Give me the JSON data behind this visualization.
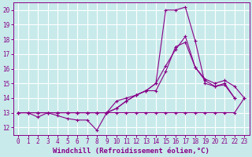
{
  "background_color": "#c8eaea",
  "grid_color": "#ffffff",
  "line_color": "#880088",
  "xlabel": "Windchill (Refroidissement éolien,°C)",
  "xlabel_fontsize": 6.5,
  "tick_fontsize": 5.5,
  "xlim": [
    -0.5,
    23.5
  ],
  "ylim": [
    11.5,
    20.5
  ],
  "yticks": [
    12,
    13,
    14,
    15,
    16,
    17,
    18,
    19,
    20
  ],
  "xticks": [
    0,
    1,
    2,
    3,
    4,
    5,
    6,
    7,
    8,
    9,
    10,
    11,
    12,
    13,
    14,
    15,
    16,
    17,
    18,
    19,
    20,
    21,
    22,
    23
  ],
  "series": [
    {
      "x": [
        0,
        1,
        2,
        3,
        4,
        5,
        6,
        7,
        8,
        9,
        10,
        11,
        12,
        13,
        14,
        15,
        16,
        17,
        18,
        19,
        20,
        21,
        22,
        23
      ],
      "y": [
        13,
        13,
        13,
        13,
        13,
        13,
        13,
        13,
        13,
        13,
        13,
        13,
        13,
        13,
        13,
        13,
        13,
        13,
        13,
        13,
        13,
        13,
        13,
        14
      ]
    },
    {
      "x": [
        0,
        1,
        2,
        3,
        4,
        5,
        6,
        7,
        8,
        9,
        10,
        11,
        12,
        13,
        14,
        15,
        16,
        17,
        18,
        19,
        20,
        21,
        22
      ],
      "y": [
        13,
        13,
        12.7,
        13,
        12.8,
        12.6,
        12.5,
        12.5,
        11.8,
        13,
        13.8,
        14,
        14.2,
        14.5,
        14.5,
        15.8,
        17.5,
        17.8,
        16.1,
        15.2,
        14.8,
        14.9,
        14.0
      ]
    },
    {
      "x": [
        0,
        1,
        2,
        3,
        4,
        5,
        6,
        7,
        8,
        9,
        10,
        11,
        12,
        13,
        14,
        15,
        16,
        17,
        18,
        19,
        20,
        21,
        22,
        23
      ],
      "y": [
        13,
        13,
        13,
        13,
        13,
        13,
        13,
        13,
        13,
        13,
        13.3,
        13.8,
        14.2,
        14.5,
        15.0,
        16.2,
        17.3,
        18.2,
        16.1,
        15.3,
        15.0,
        15.2,
        14.8,
        14.0
      ]
    },
    {
      "x": [
        0,
        1,
        2,
        3,
        4,
        5,
        6,
        7,
        8,
        9,
        10,
        11,
        12,
        13,
        14,
        15,
        16,
        17,
        18,
        19,
        20,
        21,
        22
      ],
      "y": [
        13,
        13,
        13,
        13,
        13,
        13,
        13,
        13,
        13,
        13,
        13.3,
        13.8,
        14.2,
        14.5,
        15.0,
        20.0,
        20.0,
        20.2,
        17.9,
        15.0,
        14.8,
        15.0,
        14.0
      ]
    }
  ]
}
